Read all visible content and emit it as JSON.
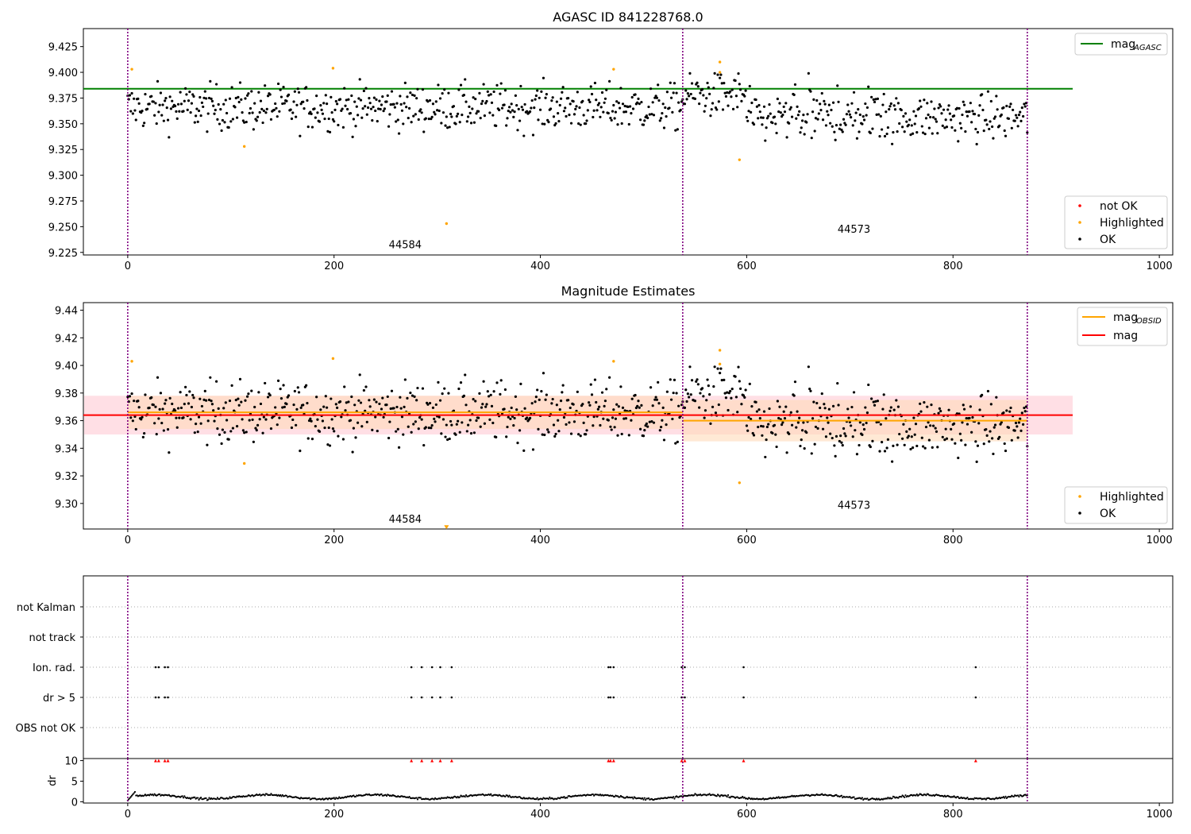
{
  "figure": {
    "title": "AGASC ID 841228768.0"
  },
  "chart_data": [
    {
      "id": "agasc",
      "type": "scatter",
      "title": "",
      "xlabel": "",
      "ylabel": "",
      "xlim": [
        -43,
        1013
      ],
      "ylim": [
        9.2225,
        9.4425
      ],
      "xticks": [
        0,
        200,
        400,
        600,
        800,
        1000
      ],
      "yticks": [
        9.225,
        9.25,
        9.275,
        9.3,
        9.325,
        9.35,
        9.375,
        9.4,
        9.425
      ],
      "ytick_labels": [
        "9.225",
        "9.250",
        "9.275",
        "9.300",
        "9.325",
        "9.350",
        "9.375",
        "9.400",
        "9.425"
      ],
      "vlines": [
        0,
        538,
        872
      ],
      "obs_labels": [
        {
          "text": "44584",
          "x": 269,
          "y": 9.233
        },
        {
          "text": "44573",
          "x": 704,
          "y": 9.248
        }
      ],
      "hlines": [
        {
          "name": "mag_AGASC",
          "y": 9.384,
          "x_end": 916,
          "color": "#008000"
        }
      ],
      "highlighted_points": [
        [
          4,
          9.403
        ],
        [
          113,
          9.328
        ],
        [
          199,
          9.404
        ],
        [
          309,
          9.253
        ],
        [
          471,
          9.403
        ],
        [
          574,
          9.41
        ],
        [
          574,
          9.4
        ],
        [
          593,
          9.315
        ]
      ],
      "legends": {
        "lines": [
          {
            "label": "mag",
            "subscript": "AGASC",
            "color": "#008000"
          }
        ],
        "points": [
          {
            "label": "not OK",
            "color": "#ff0000"
          },
          {
            "label": "Highlighted",
            "color": "#ffa500"
          },
          {
            "label": "OK",
            "color": "#000000"
          }
        ]
      },
      "series": [
        {
          "name": "OK",
          "description": "~870 black points",
          "segments": [
            {
              "x0": 0,
              "x1": 538,
              "center": 9.366,
              "spread": 0.015
            },
            {
              "x0": 538,
              "x1": 872,
              "center": 9.358,
              "spread": 0.015
            }
          ]
        }
      ]
    },
    {
      "id": "estimates",
      "type": "scatter",
      "title": "Magnitude Estimates",
      "xlabel": "",
      "ylabel": "",
      "xlim": [
        -43,
        1013
      ],
      "ylim": [
        9.2815,
        9.4455
      ],
      "xticks": [
        0,
        200,
        400,
        600,
        800,
        1000
      ],
      "yticks": [
        9.3,
        9.32,
        9.34,
        9.36,
        9.38,
        9.4,
        9.42,
        9.44
      ],
      "ytick_labels": [
        "9.30",
        "9.32",
        "9.34",
        "9.36",
        "9.38",
        "9.40",
        "9.42",
        "9.44"
      ],
      "vlines": [
        0,
        538,
        872
      ],
      "obs_labels": [
        {
          "text": "44584",
          "x": 269,
          "y": 9.289
        },
        {
          "text": "44573",
          "x": 704,
          "y": 9.299
        }
      ],
      "mag": {
        "name": "mag",
        "value": 9.364,
        "lo": 9.35,
        "hi": 9.378,
        "x0": -43,
        "x1": 916,
        "color": "#ff0000"
      },
      "mag_obsid": [
        {
          "x0": 0,
          "x1": 538,
          "value": 9.366,
          "lo": 9.354,
          "hi": 9.378
        },
        {
          "x0": 538,
          "x1": 872,
          "value": 9.36,
          "lo": 9.345,
          "hi": 9.375
        }
      ],
      "highlighted_points": [
        [
          4,
          9.403
        ],
        [
          113,
          9.329
        ],
        [
          199,
          9.405
        ],
        [
          471,
          9.403
        ],
        [
          574,
          9.411
        ],
        [
          574,
          9.401
        ],
        [
          593,
          9.315
        ]
      ],
      "clipped_marker": {
        "x": 309,
        "y": 9.2825
      },
      "legends": {
        "lines": [
          {
            "label": "mag",
            "subscript": "OBSID",
            "color": "#ffa500"
          },
          {
            "label": "mag",
            "subscript": "",
            "color": "#ff0000"
          }
        ],
        "points": [
          {
            "label": "Highlighted",
            "color": "#ffa500"
          },
          {
            "label": "OK",
            "color": "#000000"
          }
        ]
      }
    },
    {
      "id": "flags",
      "type": "scatter",
      "title": "",
      "xlabel": "",
      "ylabel": "",
      "xlim": [
        -43,
        1013
      ],
      "categories": [
        "not Kalman",
        "not track",
        "Ion. rad.",
        "dr > 5",
        "OBS not OK"
      ],
      "vlines": [
        0,
        538,
        872
      ],
      "flag_x": {
        "Ion. rad.": [
          27,
          30,
          36,
          39,
          275,
          285,
          295,
          303,
          314,
          466,
          468,
          471,
          537,
          540,
          597,
          822
        ],
        "dr > 5": [
          27,
          30,
          36,
          39,
          275,
          285,
          295,
          303,
          314,
          466,
          468,
          471,
          537,
          540,
          597,
          822
        ]
      }
    },
    {
      "id": "dr",
      "type": "scatter",
      "title": "",
      "xlabel": "",
      "ylabel": "dr",
      "xlim": [
        -43,
        1013
      ],
      "ylim": [
        -0.3,
        10.5
      ],
      "xticks": [
        0,
        200,
        400,
        600,
        800,
        1000
      ],
      "yticks": [
        0,
        5,
        10
      ],
      "ytick_labels": [
        "0",
        "5",
        "10"
      ],
      "vlines": [
        0,
        538,
        872
      ],
      "clipped_x": [
        27,
        30,
        36,
        39,
        275,
        285,
        295,
        303,
        314,
        466,
        468,
        471,
        537,
        540,
        597,
        822
      ],
      "series": [
        {
          "name": "dr",
          "description": "~870 black points, values ~0.3–2.5",
          "level": 1.2
        }
      ]
    }
  ],
  "colors": {
    "ok": "#000000",
    "highlighted": "#ffa500",
    "not_ok": "#ff0000",
    "vline": "#800080",
    "agasc_line": "#008000",
    "mag_band": "#ffc0cb",
    "obsid_band": "#ffdab9"
  }
}
